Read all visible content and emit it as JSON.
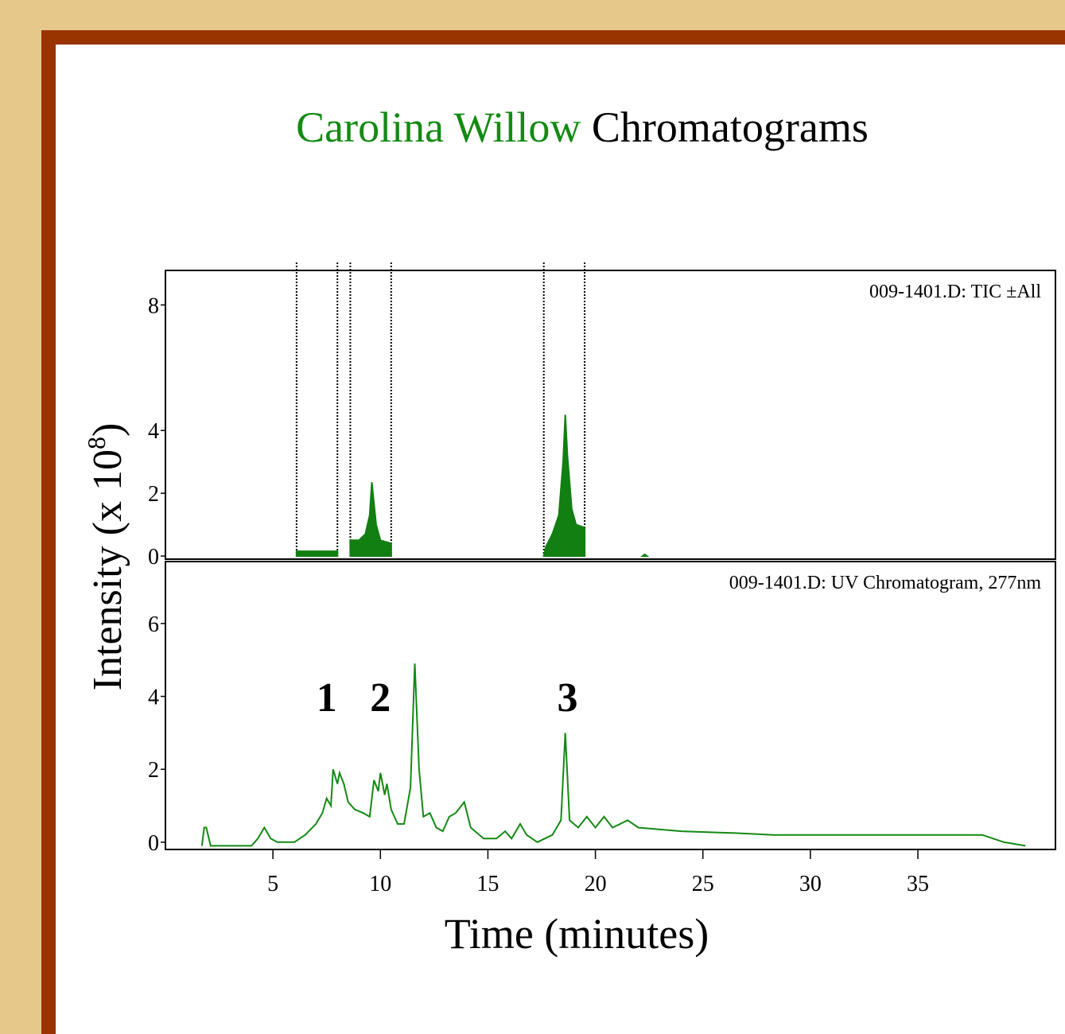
{
  "title": {
    "parts": [
      "Carolina Willow",
      "Chromatograms"
    ],
    "colors": [
      "#138a13",
      "#000000"
    ]
  },
  "ylabel": [
    "Intensity (x 10",
    "8",
    ")"
  ],
  "xlabel": "Time (minutes)",
  "chart_data": [
    {
      "type": "area",
      "label": "009-1401.D: TIC ±All",
      "color": "#117f11",
      "xlim": [
        0,
        41.4
      ],
      "ylim": [
        -0.1,
        9.1
      ],
      "yticks": [
        0,
        2,
        4,
        8
      ],
      "windows": [
        6.1,
        8.0,
        8.6,
        10.5,
        17.6,
        19.5
      ],
      "x": [
        6.1,
        6.1,
        8.0,
        8.0,
        null,
        8.6,
        8.6,
        9.0,
        9.3,
        9.5,
        9.6,
        9.8,
        10.0,
        10.5,
        10.5,
        null,
        17.6,
        17.7,
        18.0,
        18.3,
        18.5,
        18.6,
        18.7,
        18.9,
        19.1,
        19.5,
        19.5,
        null,
        22.2,
        22.3,
        22.4
      ],
      "values": [
        0,
        0.15,
        0.15,
        0,
        null,
        0,
        0.5,
        0.5,
        0.7,
        1.3,
        2.35,
        1.0,
        0.5,
        0.4,
        0,
        null,
        0,
        0.3,
        0.7,
        1.3,
        3.0,
        4.5,
        3.2,
        1.5,
        1.0,
        0.9,
        0,
        null,
        0,
        0.05,
        0
      ]
    },
    {
      "type": "line",
      "label": "009-1401.D: UV Chromatogram, 277nm",
      "color": "#138a13",
      "xlim": [
        0,
        41.4
      ],
      "ylim": [
        -0.2,
        7.7
      ],
      "yticks": [
        0,
        2,
        4,
        6
      ],
      "xticks": [
        5,
        10,
        15,
        20,
        25,
        30,
        35
      ],
      "annotations": [
        "1",
        "2",
        "3"
      ],
      "x": [
        1.7,
        1.8,
        1.9,
        2.1,
        4.0,
        4.3,
        4.6,
        4.9,
        5.2,
        6.0,
        6.5,
        7.0,
        7.3,
        7.5,
        7.7,
        7.8,
        8.0,
        8.1,
        8.3,
        8.5,
        8.8,
        9.2,
        9.5,
        9.7,
        9.9,
        10.0,
        10.2,
        10.3,
        10.5,
        10.8,
        11.1,
        11.4,
        11.6,
        11.8,
        12.0,
        12.3,
        12.6,
        12.9,
        13.2,
        13.5,
        13.9,
        14.2,
        14.8,
        15.1,
        15.4,
        15.8,
        16.1,
        16.5,
        16.8,
        17.3,
        18.0,
        18.4,
        18.6,
        18.8,
        19.2,
        19.6,
        20.0,
        20.4,
        20.8,
        21.5,
        22.0,
        24,
        26.5,
        28.3,
        38,
        39,
        40
      ],
      "values": [
        -0.1,
        0.4,
        0.4,
        -0.1,
        -0.1,
        0.1,
        0.4,
        0.1,
        0.0,
        0.0,
        0.2,
        0.5,
        0.8,
        1.2,
        1.0,
        2.0,
        1.6,
        1.9,
        1.6,
        1.1,
        0.9,
        0.8,
        0.7,
        1.7,
        1.4,
        1.9,
        1.3,
        1.6,
        0.9,
        0.5,
        0.5,
        1.5,
        4.9,
        2.0,
        0.7,
        0.8,
        0.4,
        0.3,
        0.7,
        0.8,
        1.1,
        0.4,
        0.1,
        0.1,
        0.1,
        0.3,
        0.1,
        0.5,
        0.2,
        0.0,
        0.2,
        0.6,
        3.0,
        0.6,
        0.4,
        0.7,
        0.4,
        0.7,
        0.4,
        0.6,
        0.4,
        0.3,
        0.25,
        0.2,
        0.2,
        0.0,
        -0.1
      ]
    }
  ]
}
